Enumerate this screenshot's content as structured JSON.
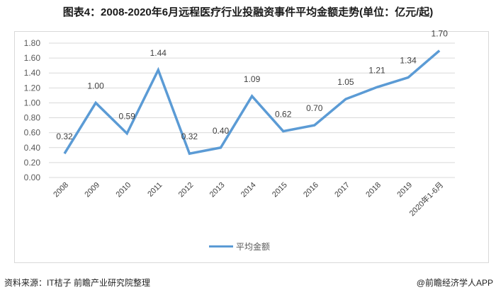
{
  "title": "图表4：2008-2020年6月远程医疗行业投融资事件平均金额走势(单位：亿元/起)",
  "legend": {
    "label": "平均金额",
    "color": "#5b9bd5"
  },
  "footer": {
    "source": "资料来源：IT桔子 前瞻产业研究院整理",
    "credit": "@前瞻经济学人APP"
  },
  "chart_data": {
    "type": "line",
    "title": "图表4：2008-2020年6月远程医疗行业投融资事件平均金额走势(单位：亿元/起)",
    "xlabel": "",
    "ylabel": "",
    "categories": [
      "2008",
      "2009",
      "2010",
      "2011",
      "2012",
      "2013",
      "2014",
      "2015",
      "2016",
      "2017",
      "2018",
      "2019",
      "2020年1-6月"
    ],
    "series": [
      {
        "name": "平均金额",
        "values": [
          0.32,
          1.0,
          0.59,
          1.44,
          0.32,
          0.4,
          1.09,
          0.62,
          0.7,
          1.05,
          1.21,
          1.34,
          1.7
        ],
        "color": "#5b9bd5"
      }
    ],
    "yticks": [
      "0.00",
      "0.20",
      "0.40",
      "0.60",
      "0.80",
      "1.00",
      "1.20",
      "1.40",
      "1.60",
      "1.80"
    ],
    "ylim": [
      0,
      1.8
    ],
    "grid": true,
    "legend_position": "bottom",
    "data_labels": true
  }
}
